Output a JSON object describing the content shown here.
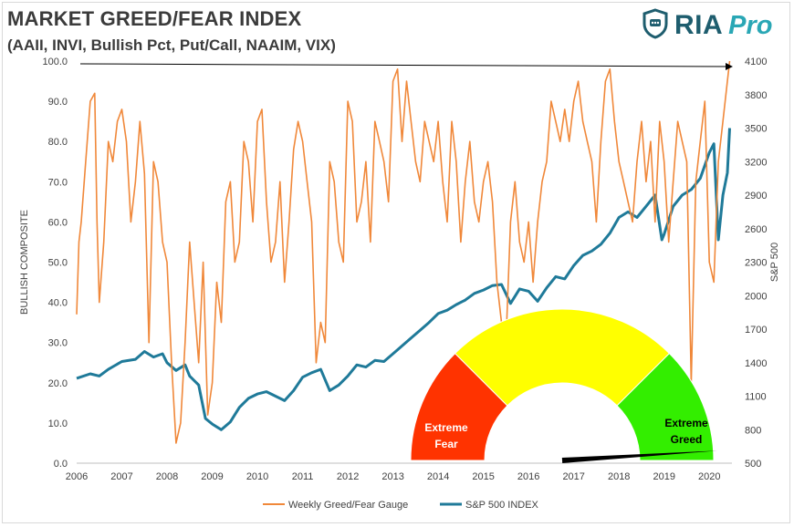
{
  "header": {
    "title": "MARKET GREED/FEAR INDEX",
    "subtitle": "(AAII, INVI, Bullish Pct, Put/Call, NAAIM, VIX)",
    "brand_name": "RIA",
    "brand_suffix": "Pro",
    "brand_icon": "shield-chat-icon"
  },
  "chart_data": {
    "type": "line",
    "ylabel": "BULLISH COMPOSITE",
    "y2label": "S&P 500",
    "ylim": [
      0,
      100
    ],
    "y2lim": [
      500,
      4100
    ],
    "xlim": [
      2006,
      2020.5
    ],
    "yticks": [
      "0.0",
      "10.0",
      "20.0",
      "30.0",
      "40.0",
      "50.0",
      "60.0",
      "70.0",
      "80.0",
      "90.0",
      "100.0"
    ],
    "y2ticks": [
      "500",
      "800",
      "1100",
      "1400",
      "1700",
      "2000",
      "2300",
      "2600",
      "2900",
      "3200",
      "3500",
      "3800",
      "4100"
    ],
    "xticks": [
      "2006",
      "2007",
      "2008",
      "2009",
      "2010",
      "2011",
      "2012",
      "2013",
      "2014",
      "2015",
      "2016",
      "2017",
      "2018",
      "2019",
      "2020"
    ],
    "legend_position": "bottom",
    "colors": {
      "gauge": "#f0883a",
      "spx": "#1f7a99"
    },
    "series": [
      {
        "name": "Weekly Greed/Fear Gauge",
        "axis": "left",
        "x": [
          2006.0,
          2006.05,
          2006.1,
          2006.2,
          2006.3,
          2006.4,
          2006.45,
          2006.5,
          2006.6,
          2006.7,
          2006.8,
          2006.9,
          2007.0,
          2007.1,
          2007.2,
          2007.3,
          2007.4,
          2007.5,
          2007.6,
          2007.7,
          2007.8,
          2007.9,
          2008.0,
          2008.1,
          2008.2,
          2008.3,
          2008.4,
          2008.5,
          2008.6,
          2008.7,
          2008.8,
          2008.9,
          2009.0,
          2009.1,
          2009.2,
          2009.3,
          2009.4,
          2009.5,
          2009.6,
          2009.7,
          2009.8,
          2009.9,
          2010.0,
          2010.1,
          2010.2,
          2010.3,
          2010.4,
          2010.5,
          2010.6,
          2010.7,
          2010.8,
          2010.9,
          2011.0,
          2011.1,
          2011.2,
          2011.3,
          2011.4,
          2011.5,
          2011.6,
          2011.7,
          2011.8,
          2011.9,
          2012.0,
          2012.1,
          2012.2,
          2012.3,
          2012.4,
          2012.5,
          2012.6,
          2012.7,
          2012.8,
          2012.9,
          2013.0,
          2013.1,
          2013.2,
          2013.3,
          2013.4,
          2013.5,
          2013.6,
          2013.7,
          2013.8,
          2013.9,
          2014.0,
          2014.1,
          2014.2,
          2014.3,
          2014.4,
          2014.5,
          2014.6,
          2014.7,
          2014.8,
          2014.9,
          2015.0,
          2015.1,
          2015.2,
          2015.3,
          2015.4,
          2015.5,
          2015.6,
          2015.7,
          2015.8,
          2015.9,
          2016.0,
          2016.1,
          2016.2,
          2016.3,
          2016.4,
          2016.5,
          2016.6,
          2016.7,
          2016.8,
          2016.9,
          2017.0,
          2017.1,
          2017.2,
          2017.3,
          2017.4,
          2017.5,
          2017.6,
          2017.7,
          2017.8,
          2017.9,
          2018.0,
          2018.1,
          2018.2,
          2018.3,
          2018.4,
          2018.5,
          2018.6,
          2018.7,
          2018.8,
          2018.9,
          2019.0,
          2019.1,
          2019.2,
          2019.3,
          2019.4,
          2019.5,
          2019.6,
          2019.7,
          2019.8,
          2019.9,
          2020.0,
          2020.1,
          2020.2,
          2020.3,
          2020.4,
          2020.45
        ],
        "values": [
          37,
          55,
          60,
          75,
          90,
          92,
          60,
          40,
          55,
          80,
          75,
          85,
          88,
          80,
          60,
          70,
          85,
          72,
          30,
          75,
          70,
          55,
          50,
          25,
          5,
          10,
          30,
          55,
          40,
          25,
          50,
          12,
          20,
          45,
          35,
          65,
          70,
          50,
          55,
          80,
          75,
          60,
          85,
          88,
          65,
          50,
          55,
          70,
          45,
          60,
          78,
          85,
          80,
          70,
          60,
          25,
          35,
          30,
          75,
          70,
          55,
          50,
          90,
          85,
          60,
          65,
          75,
          55,
          85,
          80,
          75,
          65,
          95,
          98,
          80,
          95,
          85,
          75,
          70,
          85,
          80,
          75,
          85,
          70,
          60,
          85,
          75,
          55,
          70,
          80,
          65,
          60,
          70,
          75,
          65,
          45,
          35,
          30,
          60,
          70,
          55,
          50,
          60,
          45,
          60,
          70,
          75,
          90,
          85,
          80,
          88,
          80,
          90,
          95,
          85,
          80,
          75,
          60,
          80,
          95,
          98,
          85,
          75,
          70,
          65,
          60,
          75,
          85,
          70,
          80,
          60,
          85,
          75,
          55,
          70,
          85,
          80,
          75,
          20,
          70,
          80,
          90,
          50,
          45,
          75,
          85,
          95,
          100
        ]
      },
      {
        "name": "S&P 500 INDEX",
        "axis": "right",
        "x": [
          2006.0,
          2006.3,
          2006.5,
          2006.7,
          2007.0,
          2007.3,
          2007.5,
          2007.7,
          2007.9,
          2008.0,
          2008.2,
          2008.4,
          2008.5,
          2008.7,
          2008.85,
          2009.0,
          2009.2,
          2009.4,
          2009.6,
          2009.8,
          2010.0,
          2010.2,
          2010.4,
          2010.6,
          2010.8,
          2011.0,
          2011.2,
          2011.4,
          2011.6,
          2011.8,
          2012.0,
          2012.2,
          2012.4,
          2012.6,
          2012.8,
          2013.0,
          2013.2,
          2013.4,
          2013.6,
          2013.8,
          2014.0,
          2014.2,
          2014.4,
          2014.6,
          2014.8,
          2015.0,
          2015.2,
          2015.4,
          2015.6,
          2015.8,
          2016.0,
          2016.2,
          2016.4,
          2016.6,
          2016.8,
          2017.0,
          2017.2,
          2017.4,
          2017.6,
          2017.8,
          2018.0,
          2018.2,
          2018.4,
          2018.6,
          2018.8,
          2018.95,
          2019.0,
          2019.2,
          2019.4,
          2019.6,
          2019.8,
          2020.0,
          2020.1,
          2020.2,
          2020.3,
          2020.4,
          2020.45
        ],
        "values": [
          1260,
          1300,
          1280,
          1340,
          1410,
          1430,
          1500,
          1450,
          1480,
          1400,
          1330,
          1380,
          1280,
          1200,
          900,
          850,
          800,
          870,
          1000,
          1080,
          1120,
          1140,
          1100,
          1060,
          1150,
          1270,
          1310,
          1340,
          1150,
          1200,
          1280,
          1380,
          1360,
          1420,
          1410,
          1480,
          1550,
          1620,
          1690,
          1760,
          1840,
          1870,
          1920,
          1960,
          2020,
          2050,
          2090,
          2100,
          1930,
          2060,
          2040,
          1950,
          2070,
          2170,
          2150,
          2270,
          2360,
          2400,
          2460,
          2560,
          2700,
          2750,
          2700,
          2800,
          2900,
          2500,
          2550,
          2800,
          2900,
          2950,
          3050,
          3280,
          3360,
          2500,
          2900,
          3100,
          3500
        ]
      }
    ],
    "gauge": {
      "zones": [
        {
          "label": "Extreme\nFear",
          "label_lines": [
            "Extreme",
            "Fear"
          ],
          "color": "#ff3300"
        },
        {
          "label": "",
          "color": "#ffff00"
        },
        {
          "label": "Extreme\nGreed",
          "label_lines": [
            "Extreme",
            "Greed"
          ],
          "color": "#33ee00"
        }
      ],
      "value": 98
    }
  }
}
